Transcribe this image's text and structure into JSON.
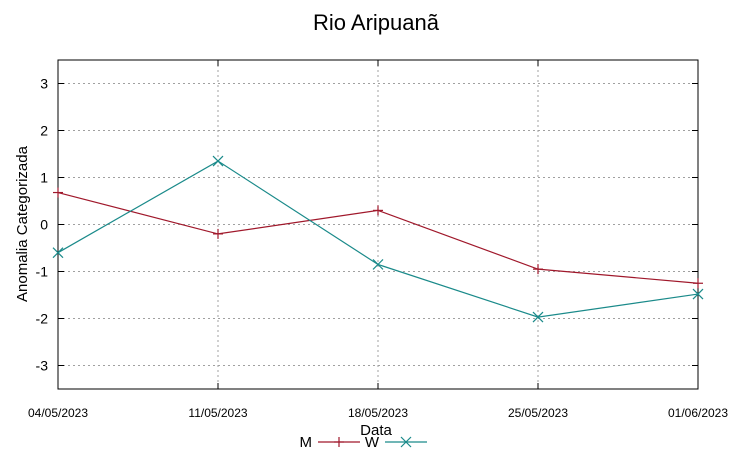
{
  "chart_data": {
    "type": "line",
    "title": "Rio Aripuanã",
    "xlabel": "Data",
    "ylabel": "Anomalia Categorizada",
    "categories": [
      "04/05/2023",
      "11/05/2023",
      "18/05/2023",
      "25/05/2023",
      "01/06/2023"
    ],
    "yticks": [
      3,
      2,
      1,
      0,
      -1,
      -2,
      -3
    ],
    "ylim": [
      -3.5,
      3.5
    ],
    "grid": true,
    "legend_position": "bottom-center",
    "series": [
      {
        "name": "M",
        "color": "#a0182b",
        "marker": "+",
        "values": [
          0.68,
          -0.2,
          0.3,
          -0.95,
          -1.25
        ]
      },
      {
        "name": "W",
        "color": "#1a8a8a",
        "marker": "x",
        "values": [
          -0.6,
          1.35,
          -0.85,
          -1.97,
          -1.48
        ]
      }
    ]
  }
}
